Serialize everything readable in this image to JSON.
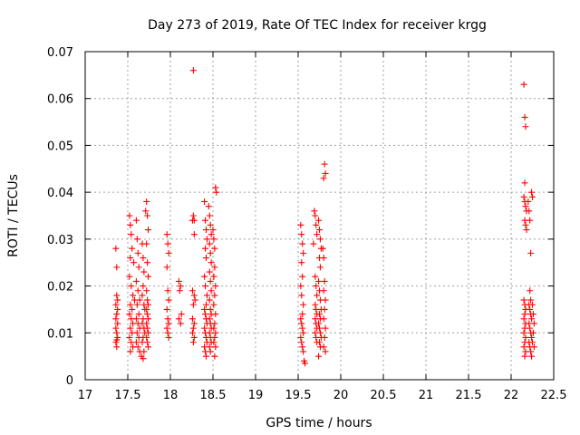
{
  "chart_data": {
    "type": "scatter",
    "title": "Day 273 of 2019, Rate Of TEC Index for receiver krgg",
    "xlabel": "GPS time / hours",
    "ylabel": "ROTI / TECUs",
    "xlim": [
      17,
      22.5
    ],
    "ylim": [
      0,
      0.07
    ],
    "xticks": [
      17,
      17.5,
      18,
      18.5,
      19,
      19.5,
      20,
      20.5,
      21,
      21.5,
      22,
      22.5
    ],
    "xtick_labels": [
      "17",
      "17.5",
      "18",
      "18.5",
      "19",
      "19.5",
      "20",
      "20.5",
      "21",
      "21.5",
      "22",
      "22.5"
    ],
    "yticks": [
      0,
      0.01,
      0.02,
      0.03,
      0.04,
      0.05,
      0.06,
      0.07
    ],
    "ytick_labels": [
      "0",
      "0.01",
      "0.02",
      "0.03",
      "0.04",
      "0.05",
      "0.06",
      "0.07"
    ],
    "grid": true,
    "marker": "+",
    "color": "#ff0000",
    "series": [
      {
        "points": [
          [
            17.36,
            0.028
          ],
          [
            17.37,
            0.024
          ],
          [
            17.37,
            0.018
          ],
          [
            17.36,
            0.016
          ],
          [
            17.37,
            0.014
          ],
          [
            17.38,
            0.012
          ],
          [
            17.36,
            0.011
          ],
          [
            17.37,
            0.01
          ],
          [
            17.38,
            0.009
          ],
          [
            17.36,
            0.008
          ],
          [
            17.37,
            0.007
          ],
          [
            17.38,
            0.015
          ],
          [
            17.36,
            0.013
          ],
          [
            17.37,
            0.0085
          ],
          [
            17.38,
            0.017
          ],
          [
            17.52,
            0.035
          ],
          [
            17.53,
            0.033
          ],
          [
            17.54,
            0.031
          ],
          [
            17.55,
            0.028
          ],
          [
            17.53,
            0.026
          ],
          [
            17.52,
            0.022
          ],
          [
            17.54,
            0.02
          ],
          [
            17.56,
            0.018
          ],
          [
            17.53,
            0.016
          ],
          [
            17.55,
            0.015
          ],
          [
            17.52,
            0.014
          ],
          [
            17.54,
            0.013
          ],
          [
            17.56,
            0.012
          ],
          [
            17.53,
            0.011
          ],
          [
            17.55,
            0.01
          ],
          [
            17.52,
            0.009
          ],
          [
            17.54,
            0.008
          ],
          [
            17.56,
            0.007
          ],
          [
            17.53,
            0.006
          ],
          [
            17.58,
            0.017
          ],
          [
            17.57,
            0.025
          ],
          [
            17.6,
            0.034
          ],
          [
            17.61,
            0.03
          ],
          [
            17.62,
            0.027
          ],
          [
            17.63,
            0.024
          ],
          [
            17.6,
            0.021
          ],
          [
            17.62,
            0.019
          ],
          [
            17.64,
            0.017
          ],
          [
            17.61,
            0.016
          ],
          [
            17.63,
            0.014
          ],
          [
            17.6,
            0.013
          ],
          [
            17.62,
            0.012
          ],
          [
            17.64,
            0.011
          ],
          [
            17.61,
            0.01
          ],
          [
            17.63,
            0.009
          ],
          [
            17.6,
            0.008
          ],
          [
            17.62,
            0.007
          ],
          [
            17.64,
            0.006
          ],
          [
            17.66,
            0.005
          ],
          [
            17.67,
            0.029
          ],
          [
            17.68,
            0.026
          ],
          [
            17.69,
            0.023
          ],
          [
            17.68,
            0.02
          ],
          [
            17.67,
            0.018
          ],
          [
            17.69,
            0.016
          ],
          [
            17.7,
            0.015
          ],
          [
            17.68,
            0.013
          ],
          [
            17.67,
            0.012
          ],
          [
            17.69,
            0.011
          ],
          [
            17.7,
            0.01
          ],
          [
            17.68,
            0.009
          ],
          [
            17.67,
            0.008
          ],
          [
            17.69,
            0.006
          ],
          [
            17.68,
            0.0045
          ],
          [
            17.71,
            0.036
          ],
          [
            17.72,
            0.038
          ],
          [
            17.73,
            0.035
          ],
          [
            17.74,
            0.032
          ],
          [
            17.72,
            0.029
          ],
          [
            17.73,
            0.025
          ],
          [
            17.74,
            0.022
          ],
          [
            17.72,
            0.019
          ],
          [
            17.73,
            0.017
          ],
          [
            17.74,
            0.016
          ],
          [
            17.72,
            0.015
          ],
          [
            17.73,
            0.014
          ],
          [
            17.74,
            0.013
          ],
          [
            17.72,
            0.012
          ],
          [
            17.73,
            0.011
          ],
          [
            17.74,
            0.01
          ],
          [
            17.72,
            0.009
          ],
          [
            17.73,
            0.008
          ],
          [
            17.74,
            0.007
          ],
          [
            17.96,
            0.031
          ],
          [
            17.97,
            0.029
          ],
          [
            17.98,
            0.027
          ],
          [
            17.96,
            0.024
          ],
          [
            17.97,
            0.019
          ],
          [
            17.98,
            0.017
          ],
          [
            17.96,
            0.015
          ],
          [
            17.97,
            0.013
          ],
          [
            17.98,
            0.012
          ],
          [
            17.96,
            0.011
          ],
          [
            17.97,
            0.01
          ],
          [
            17.98,
            0.009
          ],
          [
            18.1,
            0.021
          ],
          [
            18.12,
            0.02
          ],
          [
            18.11,
            0.019
          ],
          [
            18.1,
            0.013
          ],
          [
            18.12,
            0.012
          ],
          [
            18.13,
            0.014
          ],
          [
            18.26,
            0.034
          ],
          [
            18.27,
            0.035
          ],
          [
            18.28,
            0.034
          ],
          [
            18.27,
            0.066
          ],
          [
            18.28,
            0.031
          ],
          [
            18.26,
            0.019
          ],
          [
            18.28,
            0.018
          ],
          [
            18.29,
            0.017
          ],
          [
            18.27,
            0.016
          ],
          [
            18.26,
            0.013
          ],
          [
            18.28,
            0.012
          ],
          [
            18.27,
            0.011
          ],
          [
            18.26,
            0.01
          ],
          [
            18.28,
            0.009
          ],
          [
            18.27,
            0.008
          ],
          [
            18.4,
            0.038
          ],
          [
            18.41,
            0.034
          ],
          [
            18.42,
            0.032
          ],
          [
            18.43,
            0.03
          ],
          [
            18.41,
            0.028
          ],
          [
            18.42,
            0.026
          ],
          [
            18.4,
            0.022
          ],
          [
            18.41,
            0.02
          ],
          [
            18.43,
            0.018
          ],
          [
            18.42,
            0.016
          ],
          [
            18.4,
            0.015
          ],
          [
            18.41,
            0.014
          ],
          [
            18.42,
            0.013
          ],
          [
            18.43,
            0.012
          ],
          [
            18.4,
            0.011
          ],
          [
            18.41,
            0.01
          ],
          [
            18.42,
            0.009
          ],
          [
            18.43,
            0.008
          ],
          [
            18.4,
            0.007
          ],
          [
            18.41,
            0.006
          ],
          [
            18.42,
            0.005
          ],
          [
            18.45,
            0.037
          ],
          [
            18.46,
            0.035
          ],
          [
            18.47,
            0.033
          ],
          [
            18.48,
            0.031
          ],
          [
            18.46,
            0.029
          ],
          [
            18.47,
            0.027
          ],
          [
            18.48,
            0.025
          ],
          [
            18.46,
            0.023
          ],
          [
            18.47,
            0.021
          ],
          [
            18.48,
            0.019
          ],
          [
            18.46,
            0.017
          ],
          [
            18.47,
            0.015
          ],
          [
            18.48,
            0.014
          ],
          [
            18.46,
            0.013
          ],
          [
            18.47,
            0.012
          ],
          [
            18.48,
            0.011
          ],
          [
            18.46,
            0.01
          ],
          [
            18.47,
            0.009
          ],
          [
            18.48,
            0.008
          ],
          [
            18.46,
            0.007
          ],
          [
            18.47,
            0.006
          ],
          [
            18.5,
            0.032
          ],
          [
            18.51,
            0.03
          ],
          [
            18.52,
            0.028
          ],
          [
            18.53,
            0.041
          ],
          [
            18.54,
            0.04
          ],
          [
            18.52,
            0.024
          ],
          [
            18.51,
            0.022
          ],
          [
            18.53,
            0.02
          ],
          [
            18.52,
            0.018
          ],
          [
            18.51,
            0.016
          ],
          [
            18.53,
            0.014
          ],
          [
            18.52,
            0.012
          ],
          [
            18.51,
            0.011
          ],
          [
            18.53,
            0.01
          ],
          [
            18.52,
            0.009
          ],
          [
            18.51,
            0.008
          ],
          [
            18.53,
            0.007
          ],
          [
            18.52,
            0.005
          ],
          [
            19.53,
            0.033
          ],
          [
            19.54,
            0.031
          ],
          [
            19.55,
            0.029
          ],
          [
            19.56,
            0.027
          ],
          [
            19.54,
            0.025
          ],
          [
            19.55,
            0.022
          ],
          [
            19.53,
            0.02
          ],
          [
            19.54,
            0.018
          ],
          [
            19.56,
            0.016
          ],
          [
            19.55,
            0.014
          ],
          [
            19.53,
            0.013
          ],
          [
            19.54,
            0.012
          ],
          [
            19.55,
            0.011
          ],
          [
            19.56,
            0.01
          ],
          [
            19.53,
            0.009
          ],
          [
            19.54,
            0.008
          ],
          [
            19.55,
            0.007
          ],
          [
            19.56,
            0.006
          ],
          [
            19.57,
            0.004
          ],
          [
            19.58,
            0.0035
          ],
          [
            19.68,
            0.029
          ],
          [
            19.69,
            0.036
          ],
          [
            19.7,
            0.035
          ],
          [
            19.71,
            0.033
          ],
          [
            19.72,
            0.031
          ],
          [
            19.7,
            0.022
          ],
          [
            19.71,
            0.02
          ],
          [
            19.72,
            0.018
          ],
          [
            19.7,
            0.016
          ],
          [
            19.71,
            0.015
          ],
          [
            19.72,
            0.014
          ],
          [
            19.7,
            0.013
          ],
          [
            19.71,
            0.012
          ],
          [
            19.72,
            0.011
          ],
          [
            19.7,
            0.01
          ],
          [
            19.71,
            0.009
          ],
          [
            19.72,
            0.008
          ],
          [
            19.74,
            0.034
          ],
          [
            19.75,
            0.032
          ],
          [
            19.76,
            0.03
          ],
          [
            19.77,
            0.028
          ],
          [
            19.75,
            0.026
          ],
          [
            19.76,
            0.024
          ],
          [
            19.74,
            0.021
          ],
          [
            19.75,
            0.019
          ],
          [
            19.76,
            0.017
          ],
          [
            19.77,
            0.015
          ],
          [
            19.75,
            0.014
          ],
          [
            19.76,
            0.013
          ],
          [
            19.74,
            0.012
          ],
          [
            19.75,
            0.011
          ],
          [
            19.76,
            0.01
          ],
          [
            19.77,
            0.009
          ],
          [
            19.75,
            0.008
          ],
          [
            19.76,
            0.007
          ],
          [
            19.74,
            0.005
          ],
          [
            19.79,
            0.028
          ],
          [
            19.8,
            0.026
          ],
          [
            19.81,
            0.046
          ],
          [
            19.82,
            0.044
          ],
          [
            19.8,
            0.043
          ],
          [
            19.81,
            0.021
          ],
          [
            19.8,
            0.019
          ],
          [
            19.82,
            0.017
          ],
          [
            19.81,
            0.015
          ],
          [
            19.8,
            0.013
          ],
          [
            19.82,
            0.011
          ],
          [
            19.81,
            0.009
          ],
          [
            19.8,
            0.007
          ],
          [
            19.82,
            0.006
          ],
          [
            22.15,
            0.063
          ],
          [
            22.16,
            0.056
          ],
          [
            22.17,
            0.054
          ],
          [
            22.16,
            0.042
          ],
          [
            22.15,
            0.039
          ],
          [
            22.16,
            0.038
          ],
          [
            22.17,
            0.037
          ],
          [
            22.18,
            0.036
          ],
          [
            22.16,
            0.034
          ],
          [
            22.17,
            0.033
          ],
          [
            22.18,
            0.032
          ],
          [
            22.15,
            0.017
          ],
          [
            22.16,
            0.016
          ],
          [
            22.17,
            0.015
          ],
          [
            22.16,
            0.014
          ],
          [
            22.15,
            0.013
          ],
          [
            22.17,
            0.012
          ],
          [
            22.16,
            0.011
          ],
          [
            22.15,
            0.01
          ],
          [
            22.17,
            0.009
          ],
          [
            22.16,
            0.008
          ],
          [
            22.15,
            0.007
          ],
          [
            22.17,
            0.006
          ],
          [
            22.16,
            0.005
          ],
          [
            22.2,
            0.038
          ],
          [
            22.21,
            0.036
          ],
          [
            22.22,
            0.034
          ],
          [
            22.23,
            0.027
          ],
          [
            22.24,
            0.04
          ],
          [
            22.25,
            0.039
          ],
          [
            22.22,
            0.019
          ],
          [
            22.23,
            0.017
          ],
          [
            22.21,
            0.016
          ],
          [
            22.22,
            0.015
          ],
          [
            22.23,
            0.014
          ],
          [
            22.24,
            0.013
          ],
          [
            22.21,
            0.012
          ],
          [
            22.22,
            0.011
          ],
          [
            22.23,
            0.01
          ],
          [
            22.24,
            0.009
          ],
          [
            22.21,
            0.008
          ],
          [
            22.22,
            0.007
          ],
          [
            22.23,
            0.006
          ],
          [
            22.24,
            0.005
          ],
          [
            22.25,
            0.016
          ],
          [
            22.26,
            0.014
          ],
          [
            22.27,
            0.012
          ],
          [
            22.26,
            0.01
          ],
          [
            22.25,
            0.008
          ],
          [
            22.27,
            0.007
          ]
        ]
      }
    ]
  }
}
